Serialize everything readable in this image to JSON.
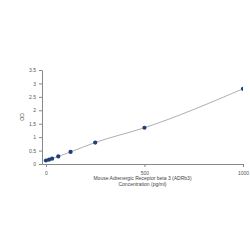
{
  "chart_data": {
    "type": "scatter",
    "x_label": [
      "Mouse Adrenergic Receptor beta 3 (ADRb3)",
      "Concentration (pg/ml)"
    ],
    "y_label": "OD",
    "x": [
      0,
      15.6,
      31.25,
      62.5,
      125,
      250,
      500,
      1000
    ],
    "values": [
      0.13,
      0.16,
      0.2,
      0.28,
      0.45,
      0.8,
      1.35,
      2.8
    ],
    "color": "#1f3f7a",
    "marker": "circle",
    "line_style": "solid",
    "xlim": [
      -20,
      1000
    ],
    "xticks": [
      0,
      500,
      1000
    ],
    "ylim": [
      0,
      3.5
    ],
    "yticks": [
      0,
      0.5,
      1,
      1.5,
      2,
      2.5,
      3,
      3.5
    ],
    "grid": false
  }
}
